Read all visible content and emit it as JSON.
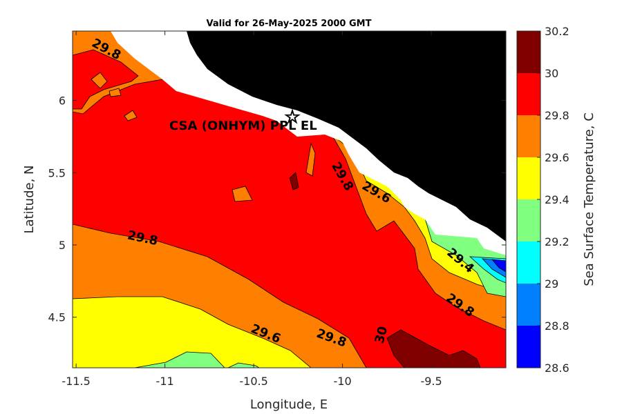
{
  "chart_data": {
    "type": "contour",
    "title": "Valid for 26-May-2025 2000 GMT",
    "xlabel": "Longitude, E",
    "ylabel": "Latitude, N",
    "xlim": [
      -11.52,
      -9.08
    ],
    "ylim": [
      4.15,
      6.48
    ],
    "xticks": [
      -11.5,
      -11,
      -10.5,
      -10,
      -9.5
    ],
    "yticks": [
      4.5,
      5,
      5.5,
      6
    ],
    "colorbar": {
      "label": "Sea Surface Temperature, C",
      "levels": [
        28.6,
        28.8,
        29,
        29.2,
        29.4,
        29.6,
        29.8,
        30,
        30.2
      ],
      "colors": [
        "#0000ff",
        "#0080ff",
        "#00ffff",
        "#80ff80",
        "#ffff00",
        "#ff8000",
        "#ff0000",
        "#800000"
      ]
    },
    "contour_labels": [
      {
        "text": "29.8",
        "lon": -11.34,
        "lat": 6.33,
        "angle": 28
      },
      {
        "text": "29.8",
        "lon": -11.13,
        "lat": 5.02,
        "angle": 12
      },
      {
        "text": "29.6",
        "lon": -10.44,
        "lat": 4.36,
        "angle": 22
      },
      {
        "text": "29.8",
        "lon": -10.07,
        "lat": 4.33,
        "angle": 20
      },
      {
        "text": "30",
        "lon": -9.76,
        "lat": 4.37,
        "angle": -75
      },
      {
        "text": "29.8",
        "lon": -10.02,
        "lat": 5.46,
        "angle": 60
      },
      {
        "text": "29.6",
        "lon": -9.82,
        "lat": 5.34,
        "angle": 30
      },
      {
        "text": "29.4",
        "lon": -9.35,
        "lat": 4.87,
        "angle": 40
      },
      {
        "text": "29.8",
        "lon": -9.35,
        "lat": 4.56,
        "angle": 35
      }
    ],
    "site": {
      "name": "CSA (ONHYM) PPL EL",
      "lon": -10.28,
      "lat": 5.92
    },
    "land_color": "#000000"
  }
}
